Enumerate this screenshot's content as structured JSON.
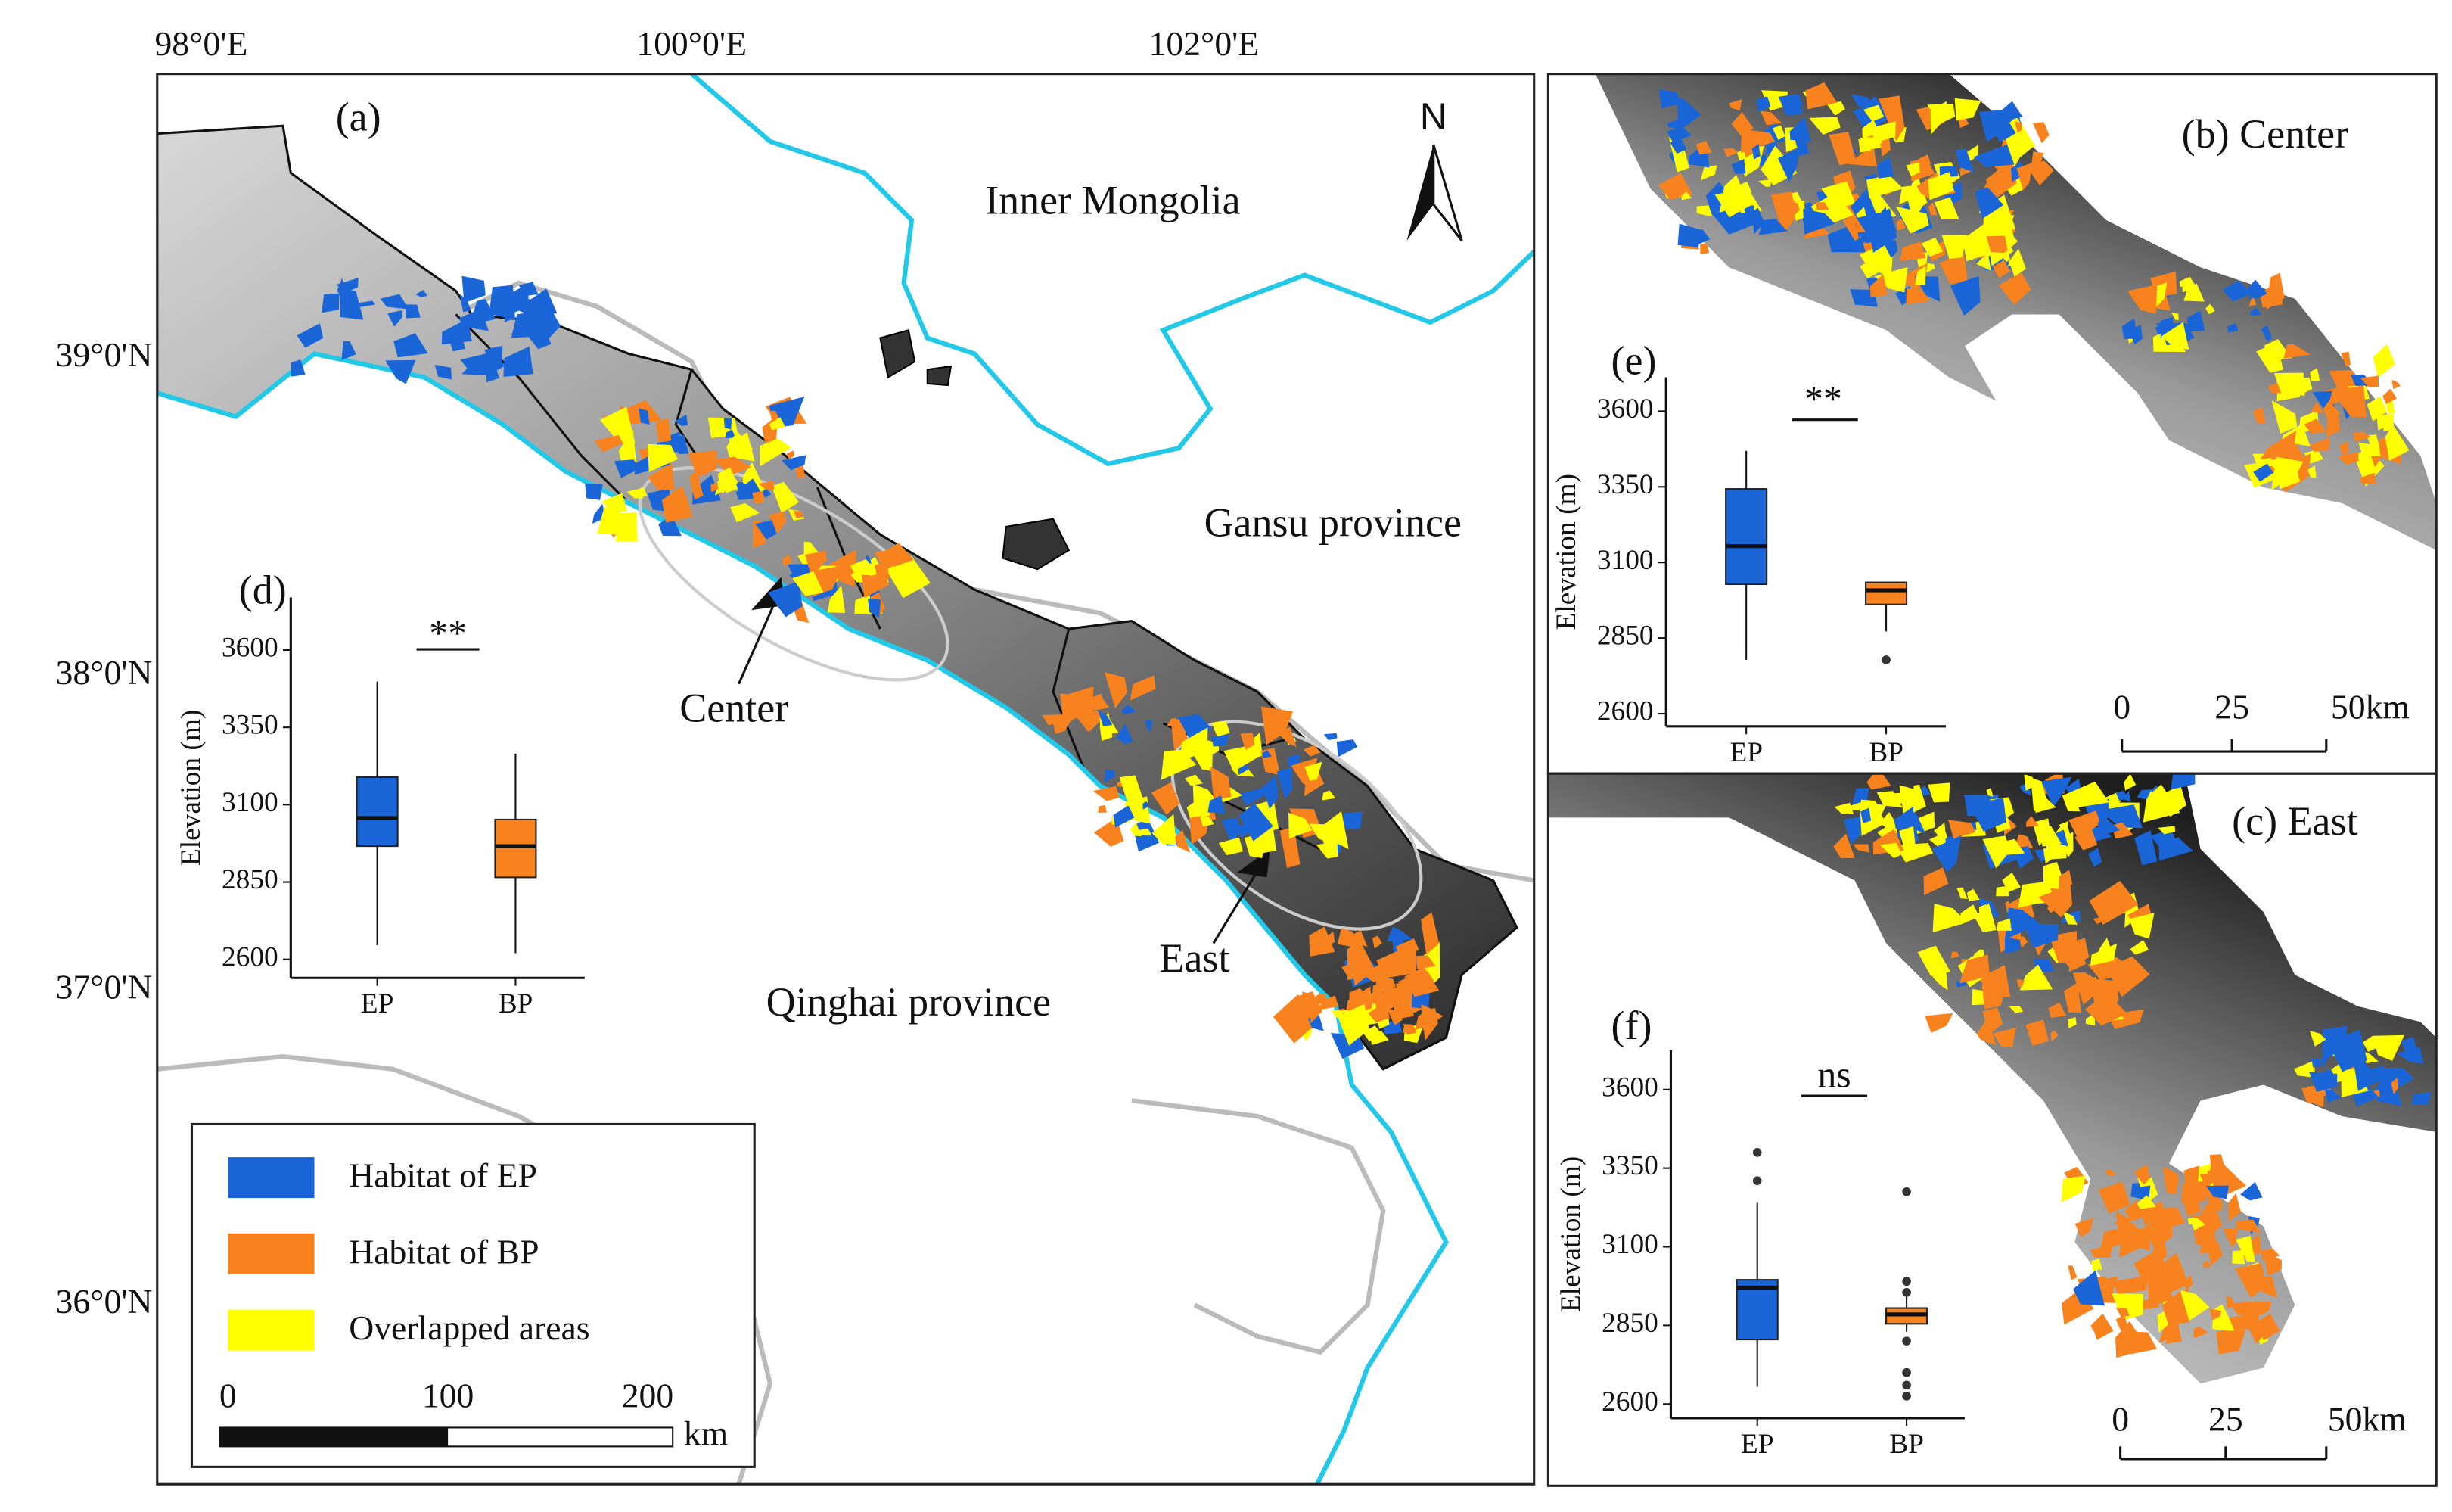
{
  "map": {
    "lon_labels": [
      "98°0'E",
      "100°0'E",
      "102°0'E"
    ],
    "lat_labels": [
      "39°0'N",
      "38°0'N",
      "37°0'N",
      "36°0'N"
    ],
    "panel_a": "(a)",
    "panel_b": "(b)  Center",
    "panel_c": "(c)  East",
    "north": "N",
    "places": {
      "inner_mongolia": "Inner Mongolia",
      "gansu": "Gansu province",
      "qinghai": "Qinghai province",
      "center": "Center",
      "east": "East"
    },
    "legend": [
      {
        "label": "Habitat of EP",
        "color": "#1a66d9"
      },
      {
        "label": "Habitat of BP",
        "color": "#f7821e"
      },
      {
        "label": "Overlapped areas",
        "color": "#ffff00"
      }
    ],
    "scale_a": {
      "labels": [
        "0",
        "100",
        "200"
      ],
      "unit": "km"
    },
    "scale_b": {
      "labels": [
        "0",
        "25",
        "50km"
      ]
    },
    "scale_c": {
      "labels": [
        "0",
        "25",
        "50km"
      ]
    }
  },
  "chart_data": [
    {
      "type": "box",
      "panel_label": "(d)",
      "y_label": "Elevation (m)",
      "annotation": "**",
      "categories": [
        "EP",
        "BP"
      ],
      "colors": [
        "#1a66d9",
        "#f7821e"
      ],
      "stats": [
        [
          2646,
          2966,
          3057,
          3189,
          3498
        ],
        [
          2620,
          2865,
          2966,
          3052,
          3265
        ]
      ],
      "ylim": [
        2540,
        3770
      ],
      "yticks": [
        2600,
        2850,
        3100,
        3350,
        3600
      ]
    },
    {
      "type": "box",
      "panel_label": "(e)",
      "y_label": "Elevation (m)",
      "annotation": "**",
      "categories": [
        "EP",
        "BP"
      ],
      "colors": [
        "#1a66d9",
        "#f7821e"
      ],
      "stats": [
        [
          2778,
          3028,
          3154,
          3343,
          3469
        ],
        [
          2872,
          2961,
          3008,
          3034,
          3034
        ]
      ],
      "outliers": [
        [],
        [
          2778
        ]
      ],
      "ylim": [
        2558,
        3712
      ],
      "yticks": [
        2600,
        2850,
        3100,
        3350,
        3600
      ]
    },
    {
      "type": "box",
      "panel_label": "(f)",
      "y_label": "Elevation (m)",
      "annotation": "ns",
      "categories": [
        "EP",
        "BP"
      ],
      "colors": [
        "#1a66d9",
        "#f7821e"
      ],
      "stats": [
        [
          2655,
          2805,
          2970,
          2995,
          3240
        ],
        [
          2830,
          2855,
          2885,
          2905,
          2950
        ]
      ],
      "outliers": [
        [
          3400,
          3310
        ],
        [
          3275,
          2990,
          2955,
          2800,
          2700,
          2660,
          2625
        ]
      ],
      "ylim": [
        2555,
        3725
      ],
      "yticks": [
        2600,
        2850,
        3100,
        3350,
        3600
      ]
    }
  ]
}
